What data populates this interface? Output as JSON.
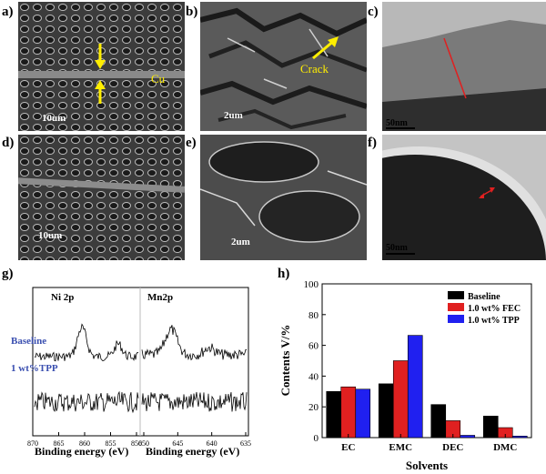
{
  "panels": {
    "a": "a)",
    "b": "b)",
    "c": "c)",
    "d": "d)",
    "e": "e)",
    "f": "f)",
    "g": "g)",
    "h": "h)"
  },
  "micrographs": {
    "a": {
      "scale": "10um",
      "annotation": "Cu"
    },
    "b": {
      "scale": "2um",
      "annotation": "Crack"
    },
    "c": {
      "scale": "50nm"
    },
    "d": {
      "scale": "10um"
    },
    "e": {
      "scale": "2um"
    },
    "f": {
      "scale": "50nm"
    }
  },
  "xps": {
    "ni_title": "Ni 2p",
    "mn_title": "Mn2p",
    "series_top": "Baseline",
    "series_bottom": "1 wt%TPP",
    "ni_ticks": [
      "870",
      "865",
      "860",
      "855",
      "850"
    ],
    "mn_ticks": [
      "650",
      "645",
      "640",
      "635"
    ],
    "xlabel_ni": "Binding energy (eV)",
    "xlabel_mn": "Binding energy (eV)",
    "series_color": "#3a4fb0"
  },
  "chart_data": {
    "type": "bar",
    "categories": [
      "EC",
      "EMC",
      "DEC",
      "DMC"
    ],
    "series": [
      {
        "name": "Baseline",
        "values": [
          30,
          35,
          21.5,
          14
        ],
        "color": "#000000"
      },
      {
        "name": "1.0 wt% FEC",
        "values": [
          33,
          50,
          11,
          6.5
        ],
        "color": "#e02020"
      },
      {
        "name": "1.0 wt% TPP",
        "values": [
          31.5,
          66.5,
          1.5,
          1
        ],
        "color": "#2020f0"
      }
    ],
    "xlabel": "Solvents",
    "ylabel": "Contents V/%",
    "ylim": [
      0,
      100
    ],
    "yticks": [
      "0",
      "20",
      "40",
      "60",
      "80",
      "100"
    ],
    "legend": "top-right",
    "grid": false
  }
}
